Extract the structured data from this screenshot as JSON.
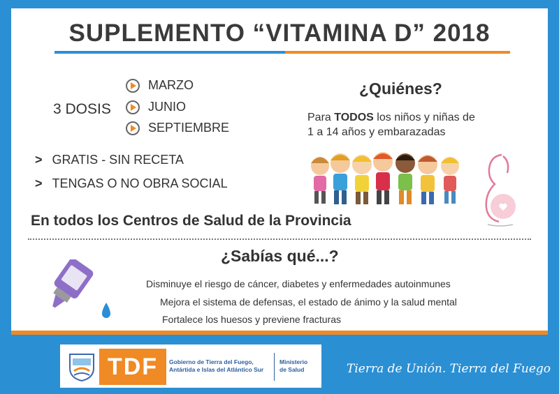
{
  "title": "SUPLEMENTO “VITAMINA D” 2018",
  "dosis": {
    "label": "3 DOSIS",
    "months": [
      "MARZO",
      "JUNIO",
      "SEPTIEMBRE"
    ]
  },
  "bullets": [
    "GRATIS - SIN RECETA",
    "TENGAS O NO OBRA SOCIAL"
  ],
  "quienes": {
    "title": "¿Quiénes?",
    "text_pre": "Para ",
    "text_bold": "TODOS",
    "text_post": " los niños y niñas de",
    "text_line2": "1 a 14 años y embarazadas"
  },
  "centros": "En todos los Centros de Salud de la Provincia",
  "sabias": {
    "title": "¿Sabías qué...?",
    "facts": [
      "Disminuye el riesgo de cáncer, diabetes y enfermedades autoinmunes",
      "Mejora el sistema de defensas, el estado de ánimo y la salud mental",
      "Fortalece los huesos y previene fracturas"
    ]
  },
  "footer": {
    "logo": "TDF",
    "gov_line1": "Gobierno de Tierra del Fuego,",
    "gov_line2": "Antártida e Islas del Atlántico Sur",
    "ministry_line1": "Ministerio",
    "ministry_line2": "de Salud",
    "slogan": "Tierra de Unión. Tierra del Fuego"
  },
  "colors": {
    "blue": "#2b8fd4",
    "orange": "#f08a24",
    "text": "#333333"
  },
  "icons": [
    "vitamin-dropper-icon",
    "children-group-icon",
    "pregnant-woman-icon",
    "province-shield-icon",
    "arrow-right-icon"
  ]
}
